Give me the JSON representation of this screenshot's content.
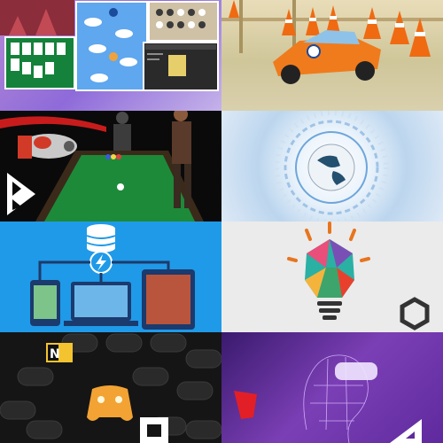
{
  "tiles": [
    {
      "id": "casual-games-collage",
      "icon": "game-collage-icon"
    },
    {
      "id": "toy-car-traffic-cones",
      "icon": "car-icon"
    },
    {
      "id": "shooter-billiards-characters",
      "icon": "billiards-icon"
    },
    {
      "id": "digital-globe",
      "icon": "globe-icon"
    },
    {
      "id": "database-multi-device",
      "icon": "database-icon"
    },
    {
      "id": "lightbulb-unity",
      "icon": "lightbulb-icon"
    },
    {
      "id": "controllers-wall",
      "icon": "gamepad-icon"
    },
    {
      "id": "vr-wireframe-head",
      "icon": "vr-headset-icon"
    }
  ],
  "colors": {
    "tile5_bg": "#1f9ae8",
    "tile8_bg": "#5f2a9e",
    "felt_green": "#1d8a3a",
    "cone_orange": "#f06a12"
  }
}
